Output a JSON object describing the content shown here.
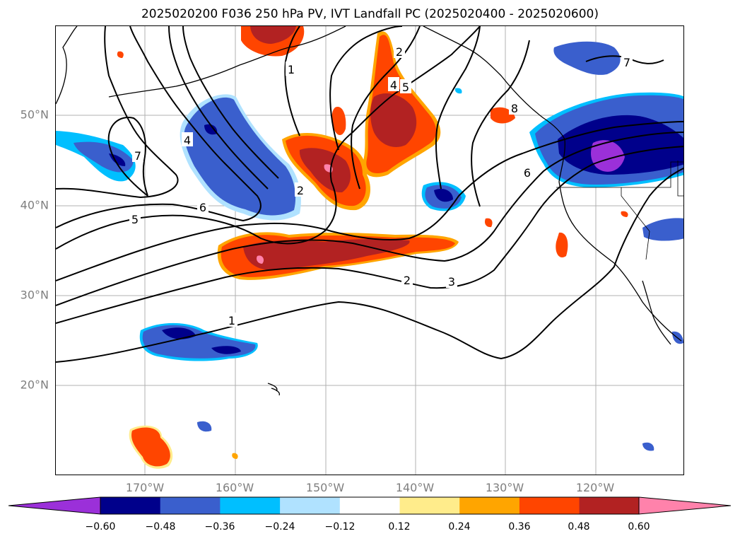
{
  "title": "2025020200 F036 250 hPa PV, IVT Landfall PC (2025020400 - 2025020600)",
  "lat_labels": [
    "50°N",
    "40°N",
    "30°N",
    "20°N"
  ],
  "lon_labels": [
    "170°W",
    "160°W",
    "150°W",
    "140°W",
    "130°W",
    "120°W"
  ],
  "colorbar": {
    "ticks": [
      "−0.60",
      "−0.48",
      "−0.36",
      "−0.24",
      "−0.12",
      "0.12",
      "0.24",
      "0.36",
      "0.48",
      "0.60"
    ],
    "colors": [
      "#9b30d9",
      "#00008b",
      "#3a5fcd",
      "#00bfff",
      "#b0e2ff",
      "#ffffff",
      "#ffec8b",
      "#ffa500",
      "#ff4500",
      "#b22222",
      "#ff82ab"
    ]
  },
  "contour_labels": [
    "1",
    "2",
    "3",
    "4",
    "5",
    "6",
    "7",
    "8"
  ],
  "map": {
    "lat_range": [
      10,
      60
    ],
    "lon_range": [
      -180,
      -110
    ],
    "grid": true
  }
}
